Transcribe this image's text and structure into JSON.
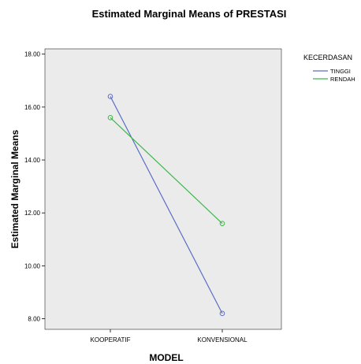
{
  "chart_data": {
    "type": "line",
    "title": "Estimated Marginal Means of PRESTASI",
    "xlabel": "MODEL",
    "ylabel": "Estimated Marginal Means",
    "categories": [
      "KOOPERATIF",
      "KONVENSIONAL"
    ],
    "ylim": [
      7.6,
      18.2
    ],
    "yticks": [
      "8.00",
      "10.00",
      "12.00",
      "14.00",
      "16.00",
      "18.00"
    ],
    "grid": false,
    "legend_title": "KECERDASAN",
    "legend_position": "right",
    "series": [
      {
        "name": "TINGGI",
        "values": [
          16.4,
          8.2
        ],
        "color": "#5b6ec7"
      },
      {
        "name": "RENDAH",
        "values": [
          15.6,
          11.6
        ],
        "color": "#3cb84a"
      }
    ],
    "plot_background": "#ebebeb"
  }
}
